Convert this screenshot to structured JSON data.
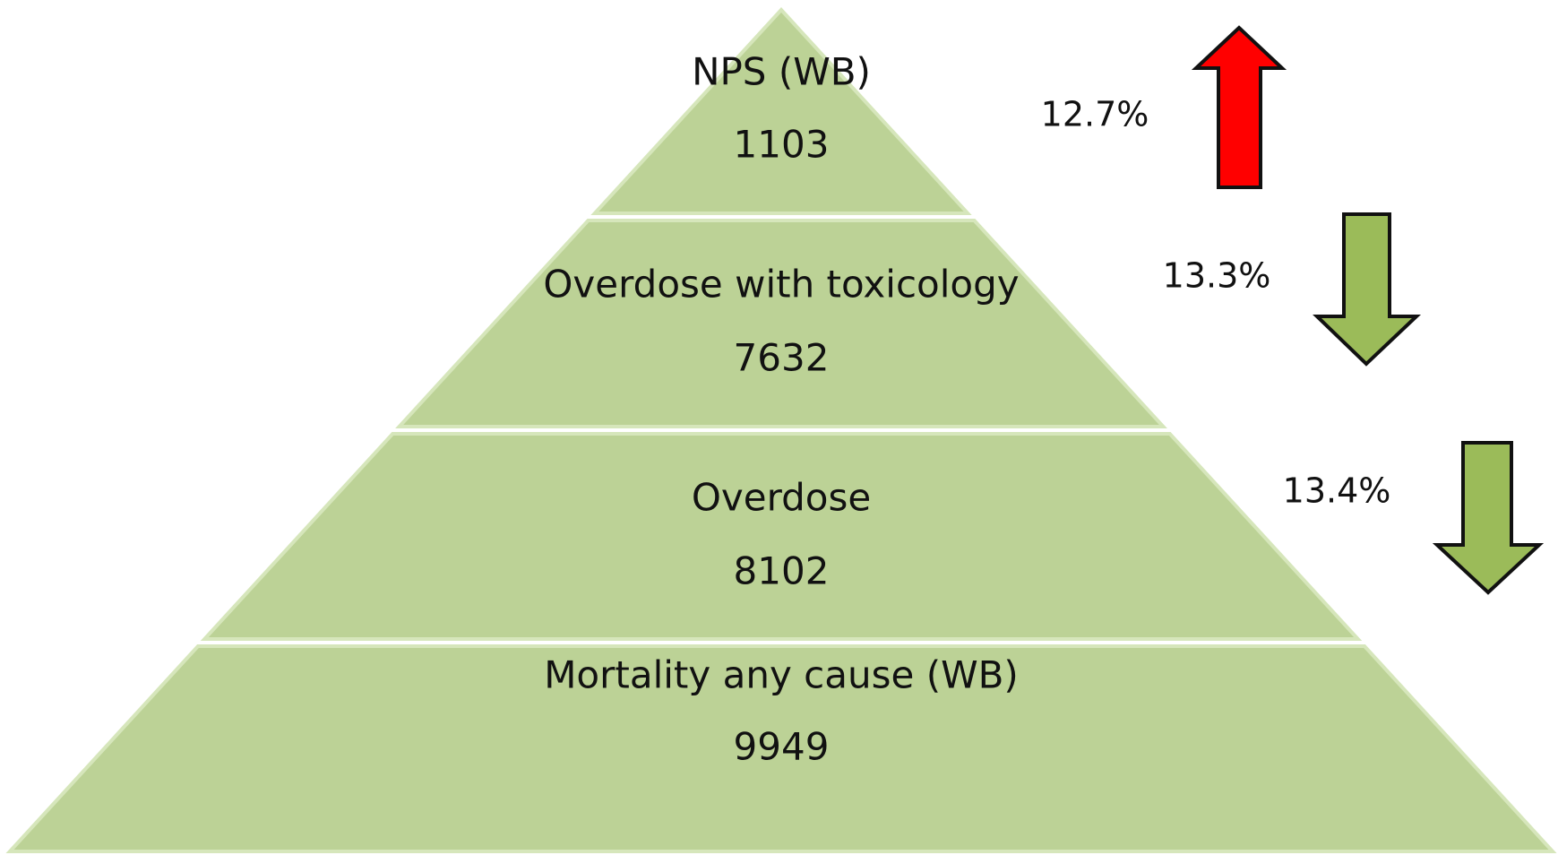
{
  "levels": [
    {
      "label": "NPS (WB)",
      "value": 1103
    },
    {
      "label": "Overdose with toxicology",
      "value": 7632
    },
    {
      "label": "Overdose",
      "value": 8102
    },
    {
      "label": "Mortality any cause (WB)",
      "value": 9949
    }
  ],
  "changes": [
    "12.7%",
    "13.3%",
    "13.4%"
  ]
}
